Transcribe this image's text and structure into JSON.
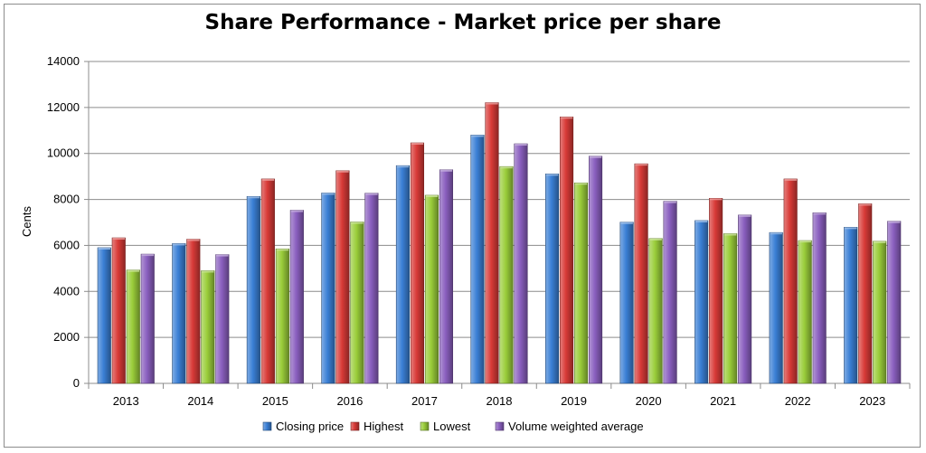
{
  "chart_data": {
    "type": "bar",
    "title": "Share Performance - Market price per share",
    "xlabel": "",
    "ylabel": "Cents",
    "ylim": [
      0,
      14000
    ],
    "yticks": [
      0,
      2000,
      4000,
      6000,
      8000,
      10000,
      12000,
      14000
    ],
    "grid": true,
    "legend_position": "bottom",
    "categories": [
      "2013",
      "2014",
      "2015",
      "2016",
      "2017",
      "2018",
      "2019",
      "2020",
      "2021",
      "2022",
      "2023"
    ],
    "series": [
      {
        "name": "Closing price",
        "color": "#3a7fd5",
        "values": [
          5900,
          6080,
          8130,
          8280,
          9470,
          10800,
          9110,
          7010,
          7080,
          6560,
          6790
        ]
      },
      {
        "name": "Highest",
        "color": "#d83a37",
        "values": [
          6330,
          6270,
          8890,
          9250,
          10460,
          12210,
          11590,
          9550,
          8050,
          8890,
          7810
        ]
      },
      {
        "name": "Lowest",
        "color": "#9acd3a",
        "values": [
          4930,
          4900,
          5850,
          7020,
          8180,
          9430,
          8720,
          6300,
          6510,
          6210,
          6180
        ]
      },
      {
        "name": "Volume weighted average",
        "color": "#8a5fbf",
        "values": [
          5620,
          5600,
          7530,
          8270,
          9290,
          10420,
          9880,
          7920,
          7320,
          7420,
          7050
        ]
      }
    ]
  }
}
